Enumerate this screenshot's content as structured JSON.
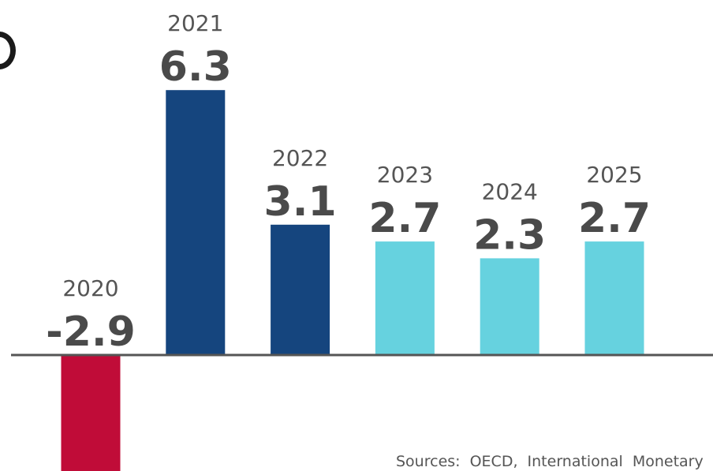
{
  "chart_data": {
    "type": "bar",
    "categories": [
      "2020",
      "2021",
      "2022",
      "2023",
      "2024",
      "2025"
    ],
    "values": [
      -2.9,
      6.3,
      3.1,
      2.7,
      2.3,
      2.7
    ],
    "value_labels": [
      "-2.9",
      "6.3",
      "3.1",
      "2.7",
      "2.3",
      "2.7"
    ],
    "bar_colors": [
      "#c00c38",
      "#15457e",
      "#15457e",
      "#66d2df",
      "#66d2df",
      "#66d2df"
    ],
    "title": "",
    "xlabel": "",
    "ylabel": "",
    "ylim": [
      -2.9,
      6.3
    ],
    "grid": false,
    "legend": "none"
  },
  "source": "Sources: OECD, International Monetary",
  "colors": {
    "negative": "#c00c38",
    "actual": "#15457e",
    "forecast": "#66d2df",
    "axis": "#555555"
  }
}
